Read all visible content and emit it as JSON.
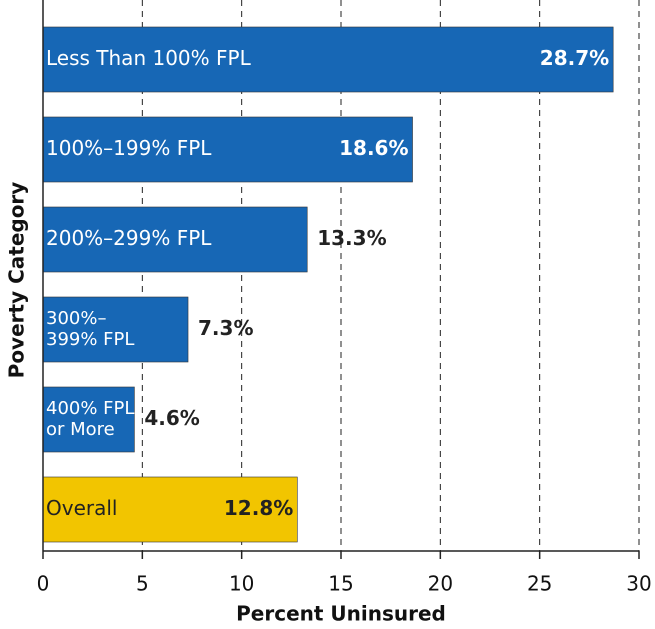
{
  "chart_data": {
    "type": "barh",
    "categories": [
      "Less Than 100% FPL",
      "100%–199% FPL",
      "200%–299% FPL",
      "300%–\n399% FPL",
      "400% FPL\nor More",
      "Overall"
    ],
    "values": [
      28.7,
      18.6,
      13.3,
      7.3,
      4.6,
      12.8
    ],
    "value_labels": [
      "28.7%",
      "18.6%",
      "13.3%",
      "7.3%",
      "4.6%",
      "12.8%"
    ],
    "colors": [
      "#1767b5",
      "#1767b5",
      "#1767b5",
      "#1767b5",
      "#1767b5",
      "#f2c500"
    ],
    "xlabel": "Percent Uninsured",
    "ylabel": "Poverty Category",
    "xlim": [
      0,
      30
    ],
    "xticks": [
      0,
      5,
      10,
      15,
      20,
      25,
      30
    ],
    "grid": true
  }
}
